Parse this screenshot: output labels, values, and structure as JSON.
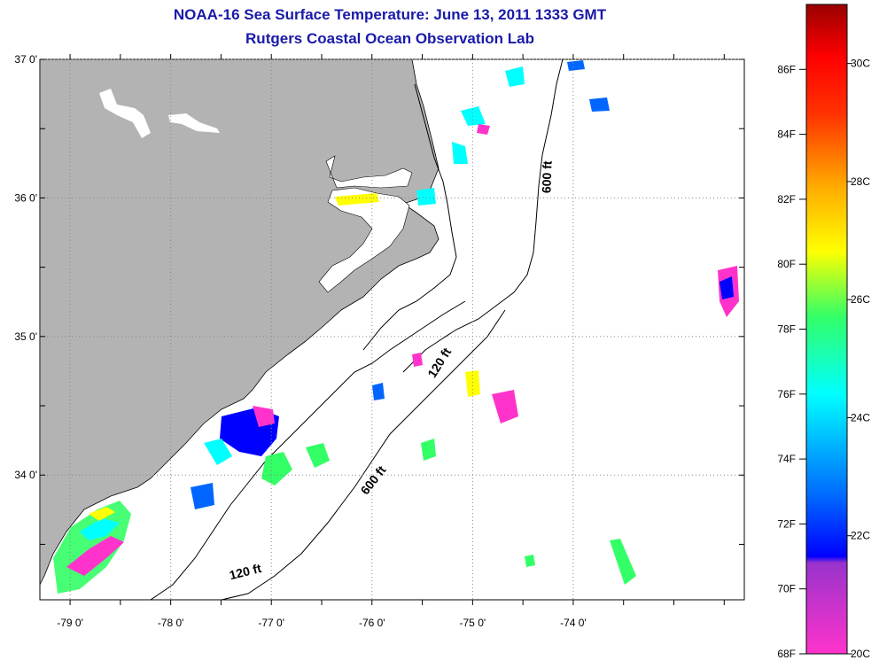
{
  "title": "NOAA-16 Sea Surface Temperature:  June 13, 2011 1333 GMT",
  "subtitle": "Rutgers Coastal Ocean Observation Lab",
  "map": {
    "lat_labels": [
      "37 0'",
      "36 0'",
      "35 0'",
      "34 0'"
    ],
    "lon_labels": [
      "-79 0'",
      "-78 0'",
      "-77 0'",
      "-76 0'",
      "-75 0'",
      "-74 0'"
    ],
    "lat_ticks": [
      37,
      36,
      35,
      34
    ],
    "lon_ticks": [
      -79,
      -78,
      -77,
      -76,
      -75,
      -74
    ],
    "lat_range": [
      33.1,
      37.0
    ],
    "lon_range": [
      -79.3,
      -72.3
    ],
    "isobaths": [
      {
        "label": "600 ft",
        "location": "near 36.2N 74.8W"
      },
      {
        "label": "120 ft",
        "location": "near 34.8N 75.8W"
      },
      {
        "label": "600 ft",
        "location": "near 34.0N 76.4W"
      },
      {
        "label": "120 ft",
        "location": "near 33.3N 77.6W"
      }
    ],
    "colors": {
      "land": "#b3b3b3",
      "ocean_cloud": "#ffffff",
      "grid": "#888888"
    }
  },
  "colorbar": {
    "fahrenheit": [
      "86F",
      "84F",
      "82F",
      "80F",
      "78F",
      "76F",
      "74F",
      "72F",
      "70F",
      "68F"
    ],
    "celsius": [
      "30C",
      "28C",
      "26C",
      "24C",
      "22C",
      "20C"
    ],
    "range_f": [
      68,
      88
    ],
    "range_c": [
      20,
      31
    ]
  }
}
